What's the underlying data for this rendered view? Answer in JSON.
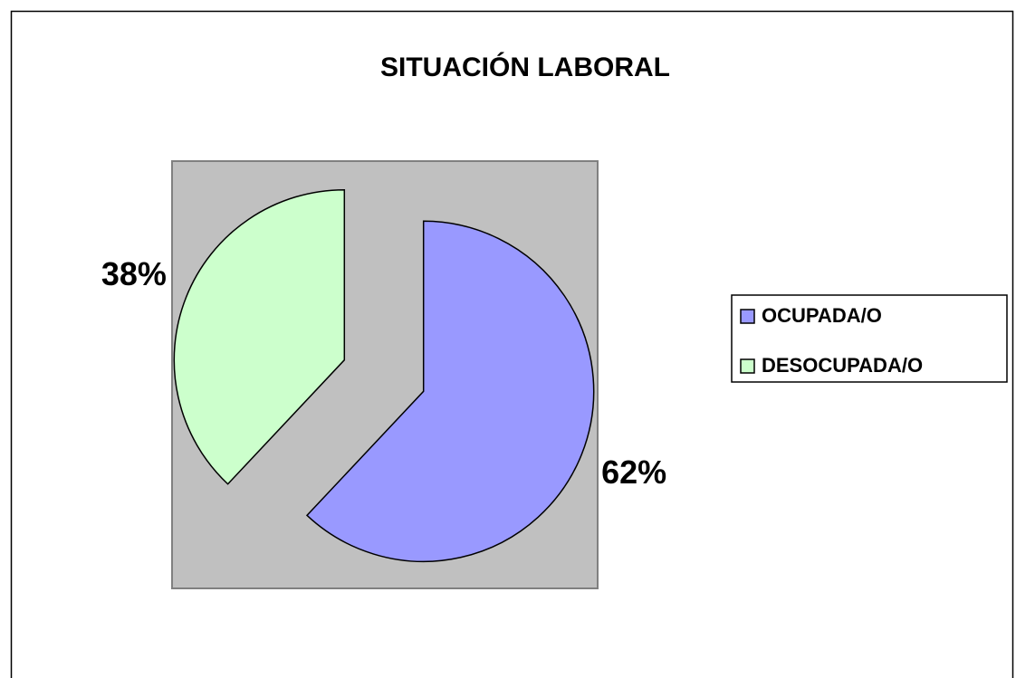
{
  "chart_data": {
    "type": "pie",
    "title": "SITUACIÓN LABORAL",
    "categories": [
      "OCUPADA/O",
      "DESOCUPADA/O"
    ],
    "values": [
      62,
      38
    ],
    "value_labels": [
      "62%",
      "38%"
    ],
    "colors": [
      "#9999ff",
      "#ccffcc"
    ],
    "legend": "right"
  }
}
